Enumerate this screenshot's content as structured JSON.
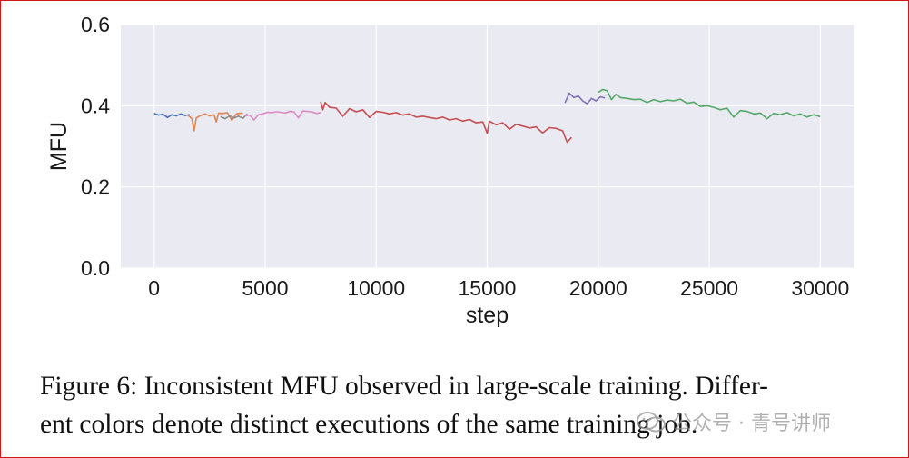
{
  "chart_data": {
    "type": "line",
    "title": "",
    "xlabel": "step",
    "ylabel": "MFU",
    "xlim": [
      -1500,
      31500
    ],
    "ylim": [
      0.0,
      0.6
    ],
    "xticks": [
      0,
      5000,
      10000,
      15000,
      20000,
      25000,
      30000
    ],
    "yticks": [
      0.0,
      0.2,
      0.4,
      0.6
    ],
    "xtick_labels": [
      "0",
      "5000",
      "10000",
      "15000",
      "20000",
      "25000",
      "30000"
    ],
    "ytick_labels": [
      "0.0",
      "0.2",
      "0.4",
      "0.6"
    ],
    "grid": true,
    "legend": false,
    "background": "#eaeaf2",
    "series": [
      {
        "color": "#4c72b0",
        "x": [
          0,
          200,
          400,
          600,
          800,
          1000,
          1200,
          1400,
          1600
        ],
        "y": [
          0.381,
          0.377,
          0.379,
          0.371,
          0.378,
          0.375,
          0.38,
          0.376,
          0.378
        ]
      },
      {
        "color": "#dd8452",
        "x": [
          1500,
          1700,
          1800,
          1900,
          2100,
          2300,
          2500,
          2700,
          2800,
          2900,
          3100,
          3300,
          3500,
          3700,
          3900,
          4000
        ],
        "y": [
          0.378,
          0.368,
          0.338,
          0.37,
          0.376,
          0.38,
          0.375,
          0.378,
          0.36,
          0.382,
          0.381,
          0.383,
          0.364,
          0.38,
          0.382,
          0.381
        ]
      },
      {
        "color": "#8c8c8c",
        "x": [
          3000,
          3200,
          3400,
          3600,
          3800,
          4000,
          4200
        ],
        "y": [
          0.373,
          0.368,
          0.375,
          0.37,
          0.374,
          0.369,
          0.38
        ]
      },
      {
        "color": "#da8bc3",
        "x": [
          4100,
          4300,
          4500,
          4700,
          4900,
          5100,
          5300,
          5500,
          5700,
          5900,
          6100,
          6300,
          6500,
          6700,
          6900,
          7100,
          7300,
          7500
        ],
        "y": [
          0.375,
          0.377,
          0.365,
          0.378,
          0.38,
          0.384,
          0.383,
          0.385,
          0.384,
          0.382,
          0.386,
          0.385,
          0.37,
          0.387,
          0.386,
          0.385,
          0.381,
          0.383
        ]
      },
      {
        "color": "#c44e52",
        "x": [
          7500,
          7600,
          7700,
          7900,
          8200,
          8500,
          8800,
          9100,
          9400,
          9700,
          10000,
          10300,
          10600,
          10900,
          11200,
          11500,
          11800,
          12100,
          12400,
          12700,
          13000,
          13300,
          13600,
          13900,
          14200,
          14500,
          14800,
          15000,
          15100,
          15400,
          15700,
          16000,
          16300,
          16600,
          16900,
          17200,
          17500,
          17800,
          18100,
          18400,
          18600,
          18800
        ],
        "y": [
          0.41,
          0.39,
          0.408,
          0.396,
          0.394,
          0.374,
          0.393,
          0.385,
          0.39,
          0.371,
          0.386,
          0.384,
          0.38,
          0.383,
          0.377,
          0.38,
          0.372,
          0.374,
          0.371,
          0.368,
          0.372,
          0.365,
          0.368,
          0.362,
          0.366,
          0.358,
          0.36,
          0.332,
          0.362,
          0.353,
          0.358,
          0.342,
          0.354,
          0.35,
          0.345,
          0.348,
          0.333,
          0.346,
          0.344,
          0.338,
          0.31,
          0.322
        ]
      },
      {
        "color": "#8172b3",
        "x": [
          18500,
          18700,
          18900,
          19100,
          19300,
          19500,
          19700,
          19900,
          20100,
          20300
        ],
        "y": [
          0.407,
          0.431,
          0.42,
          0.424,
          0.412,
          0.405,
          0.418,
          0.412,
          0.422,
          0.419
        ]
      },
      {
        "color": "#55a868",
        "x": [
          20000,
          20200,
          20400,
          20600,
          20800,
          21000,
          21300,
          21600,
          21900,
          22200,
          22500,
          22800,
          23100,
          23400,
          23700,
          24000,
          24300,
          24600,
          24900,
          25200,
          25500,
          25800,
          26100,
          26400,
          26700,
          27000,
          27300,
          27600,
          27900,
          28200,
          28500,
          28800,
          29100,
          29400,
          29700,
          30000
        ],
        "y": [
          0.433,
          0.44,
          0.437,
          0.415,
          0.428,
          0.42,
          0.418,
          0.415,
          0.416,
          0.408,
          0.415,
          0.41,
          0.414,
          0.412,
          0.416,
          0.406,
          0.409,
          0.398,
          0.4,
          0.396,
          0.39,
          0.394,
          0.372,
          0.388,
          0.386,
          0.38,
          0.382,
          0.368,
          0.381,
          0.378,
          0.383,
          0.375,
          0.38,
          0.372,
          0.378,
          0.373
        ]
      }
    ]
  },
  "caption": {
    "line1": "Figure 6: Inconsistent MFU observed in large-scale training. Differ-",
    "line2": "ent colors denote distinct executions of the same training job."
  },
  "watermark": {
    "text": "公众号 · 青号讲师"
  }
}
